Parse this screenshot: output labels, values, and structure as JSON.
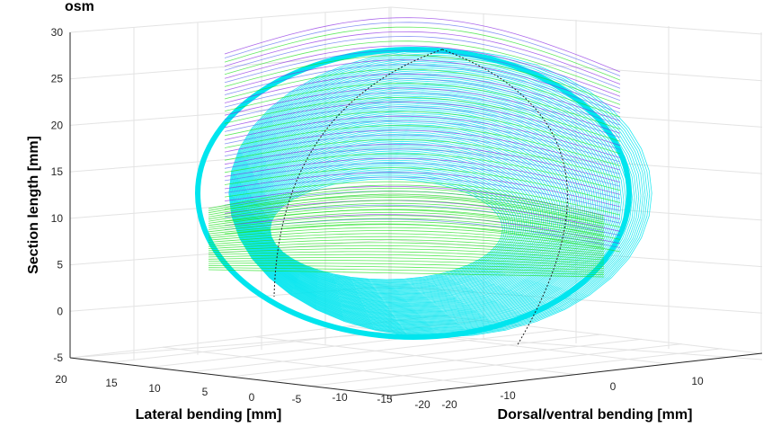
{
  "chart_data": {
    "type": "surface3d",
    "title_fragment": "osm",
    "zlabel": "Section length [mm]",
    "xlabel": "Lateral bending [mm]",
    "ylabel": "Dorsal/ventral bending [mm]",
    "z_ticks": [
      "30",
      "25",
      "20",
      "15",
      "10",
      "5",
      "0",
      "-5"
    ],
    "x_ticks": [
      "20",
      "15",
      "10",
      "5",
      "0",
      "-5",
      "-10",
      "-15",
      "-20"
    ],
    "y_ticks": [
      "-20",
      "-10",
      "0",
      "10"
    ],
    "zlim": [
      -5,
      30
    ],
    "grid": true,
    "series": [
      {
        "color": "#00e5ee",
        "shape": "ellipsoidal shell of line loops, lower rim",
        "z_range": [
          -2,
          28
        ]
      },
      {
        "color": "#8a2be2",
        "shape": "loops on upper right of shell",
        "z_range": [
          8,
          28
        ]
      },
      {
        "color": "#22e022",
        "shape": "band of loops on left",
        "z_range": [
          4,
          12
        ]
      }
    ]
  }
}
